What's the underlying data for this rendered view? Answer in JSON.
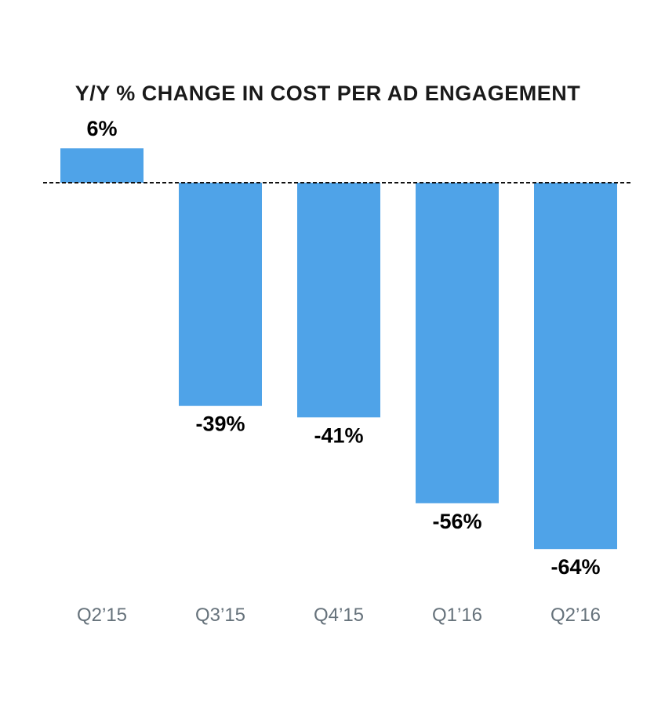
{
  "chart_data": {
    "type": "bar",
    "title": "Y/Y % CHANGE IN COST PER AD ENGAGEMENT",
    "xlabel": "",
    "ylabel": "",
    "categories": [
      "Q2’15",
      "Q3’15",
      "Q4’15",
      "Q1’16",
      "Q2’16"
    ],
    "values": [
      6,
      -39,
      -41,
      -56,
      -64
    ],
    "data_labels": [
      "6%",
      "-39%",
      "-41%",
      "-56%",
      "-64%"
    ],
    "ylim": [
      -64,
      6
    ],
    "baseline": 0,
    "grid": false,
    "legend": "none"
  },
  "colors": {
    "bar": "#4fa3e8",
    "title": "#1a1a1a",
    "data_label": "#000000",
    "tick_label": "#66727b",
    "baseline": "#111111"
  }
}
